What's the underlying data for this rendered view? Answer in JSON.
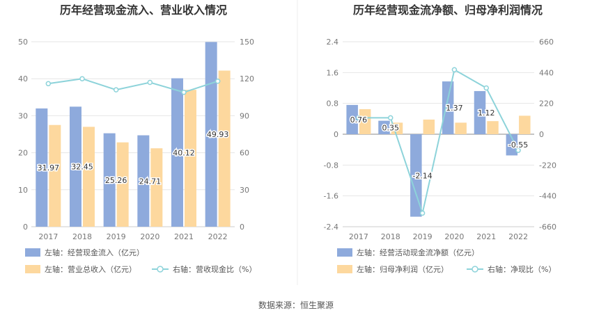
{
  "source": "数据来源：恒生聚源",
  "colors": {
    "bar_blue": "#8eaadc",
    "bar_orange": "#fdd89e",
    "line": "#8dd3da",
    "label_outline": "#ffffff"
  },
  "chart_data": [
    {
      "type": "bar",
      "title": "历年经营现金流入、营业收入情况",
      "categories": [
        "2017",
        "2018",
        "2019",
        "2020",
        "2021",
        "2022"
      ],
      "y_left": {
        "ticks": [
          "0",
          "10",
          "20",
          "30",
          "40",
          "50"
        ],
        "ylim": [
          0,
          50
        ]
      },
      "y_right": {
        "ticks": [
          "0",
          "30",
          "60",
          "90",
          "120",
          "150"
        ],
        "ylim": [
          0,
          150
        ]
      },
      "series": [
        {
          "name": "左轴：经营现金流入（亿元）",
          "axis": "left",
          "kind": "bar",
          "color": "#8eaadc",
          "values": [
            31.97,
            32.45,
            25.26,
            24.71,
            40.12,
            49.93
          ],
          "labels": [
            "31.97",
            "32.45",
            "25.26",
            "24.71",
            "40.12",
            "49.93"
          ]
        },
        {
          "name": "左轴：营业总收入（亿元）",
          "axis": "left",
          "kind": "bar",
          "color": "#fdd89e",
          "values": [
            27.5,
            27.0,
            22.8,
            21.2,
            37.0,
            42.2
          ]
        },
        {
          "name": "右轴：营收现金比（%）",
          "axis": "right",
          "kind": "line",
          "color": "#8dd3da",
          "values": [
            116,
            120,
            111,
            117,
            109,
            118
          ]
        }
      ],
      "legend": [
        "左轴：经营现金流入（亿元）",
        "左轴：营业总收入（亿元）",
        "右轴：营收现金比（%）"
      ],
      "legend_position": "bottom",
      "grid": true
    },
    {
      "type": "bar",
      "title": "历年经营现金流净额、归母净利润情况",
      "categories": [
        "2017",
        "2018",
        "2019",
        "2020",
        "2021",
        "2022"
      ],
      "y_left": {
        "ticks": [
          "-2.4",
          "-1.6",
          "-0.8",
          "0",
          "0.8",
          "1.6",
          "2.4"
        ],
        "ylim": [
          -2.4,
          2.4
        ]
      },
      "y_right": {
        "ticks": [
          "-660",
          "-440",
          "-220",
          "0",
          "220",
          "440",
          "660"
        ],
        "ylim": [
          -660,
          660
        ]
      },
      "series": [
        {
          "name": "左轴：经营活动现金流净额（亿元）",
          "axis": "left",
          "kind": "bar",
          "color": "#8eaadc",
          "values": [
            0.76,
            0.35,
            -2.14,
            1.37,
            1.12,
            -0.55
          ],
          "labels": [
            "0.76",
            "0.35",
            "-2.14",
            "1.37",
            "1.12",
            "-0.55"
          ]
        },
        {
          "name": "左轴：归母净利润（亿元）",
          "axis": "left",
          "kind": "bar",
          "color": "#fdd89e",
          "values": [
            0.65,
            0.3,
            0.38,
            0.3,
            0.34,
            0.48
          ]
        },
        {
          "name": "右轴：净现比（%）",
          "axis": "right",
          "kind": "line",
          "color": "#8dd3da",
          "values": [
            117,
            117,
            -563,
            460,
            330,
            -115
          ]
        }
      ],
      "legend": [
        "左轴：经营活动现金流净额（亿元）",
        "左轴：归母净利润（亿元）",
        "右轴：净现比（%）"
      ],
      "legend_position": "bottom",
      "grid": true
    }
  ]
}
